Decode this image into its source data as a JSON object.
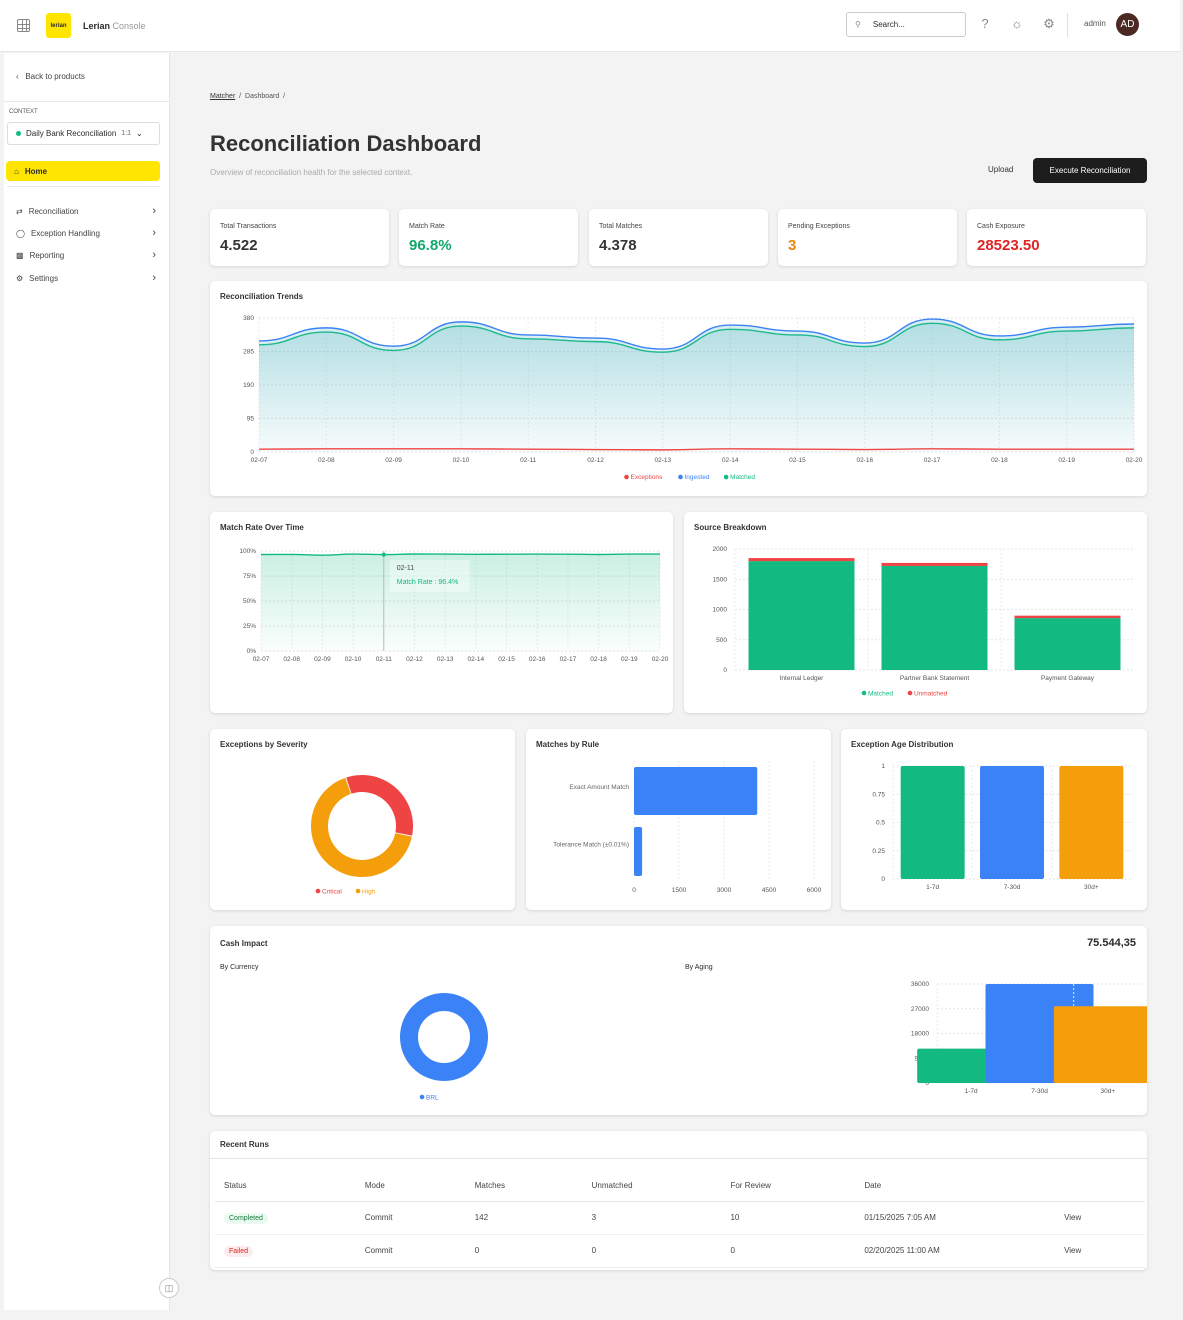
{
  "header": {
    "brand": "Lerian",
    "brand_sub": "Console",
    "logo_text": "lerian",
    "search_placeholder": "Search...",
    "user": "admin",
    "avatar": "AD"
  },
  "sidebar": {
    "back": "Back to products",
    "context_label": "CONTEXT",
    "context": "Daily Bank Reconciliation",
    "context_badge": "1:1",
    "home": "Home",
    "items": [
      {
        "label": "Reconciliation"
      },
      {
        "label": "Exception Handling"
      },
      {
        "label": "Reporting"
      },
      {
        "label": "Settings"
      }
    ]
  },
  "breadcrumb": [
    "Matcher",
    "Dashboard"
  ],
  "page": {
    "title": "Reconciliation Dashboard",
    "subtitle": "Overview of reconciliation health for the selected context.",
    "upload": "Upload",
    "execute": "Execute Reconciliation"
  },
  "kpis": [
    {
      "label": "Total Transactions",
      "value": "4.522",
      "color": "#333333"
    },
    {
      "label": "Match Rate",
      "value": "96.8%",
      "color": "#12a86b"
    },
    {
      "label": "Total Matches",
      "value": "4.378",
      "color": "#333333"
    },
    {
      "label": "Pending Exceptions",
      "value": "3",
      "color": "#e8860c"
    },
    {
      "label": "Cash Exposure",
      "value": "28523.50",
      "color": "#e02424"
    }
  ],
  "chart_data": [
    {
      "id": "trends",
      "type": "area",
      "title": "Reconciliation Trends",
      "x": [
        "02-07",
        "02-08",
        "02-09",
        "02-10",
        "02-11",
        "02-12",
        "02-13",
        "02-14",
        "02-15",
        "02-16",
        "02-17",
        "02-18",
        "02-19",
        "02-20"
      ],
      "yticks": [
        0,
        95,
        190,
        285,
        380
      ],
      "ylim": [
        0,
        380
      ],
      "series": [
        {
          "name": "Exceptions",
          "color": "#ef4444",
          "values": [
            8,
            9,
            9,
            9,
            8,
            7,
            6,
            9,
            8,
            7,
            9,
            8,
            8,
            8
          ]
        },
        {
          "name": "Ingested",
          "color": "#3b82f6",
          "values": [
            315,
            352,
            300,
            369,
            332,
            323,
            292,
            360,
            343,
            309,
            377,
            329,
            354,
            363
          ]
        },
        {
          "name": "Matched",
          "color": "#12b981",
          "values": [
            304,
            340,
            288,
            357,
            321,
            313,
            283,
            348,
            332,
            299,
            365,
            318,
            343,
            352
          ]
        }
      ]
    },
    {
      "id": "matchrate",
      "type": "area",
      "title": "Match Rate Over Time",
      "x": [
        "02-07",
        "02-08",
        "02-09",
        "02-10",
        "02-11",
        "02-12",
        "02-13",
        "02-14",
        "02-15",
        "02-16",
        "02-17",
        "02-18",
        "02-19",
        "02-20"
      ],
      "yticks": [
        "0%",
        "25%",
        "50%",
        "75%",
        "100%"
      ],
      "ylim": [
        0,
        100
      ],
      "series": [
        {
          "name": "Match Rate",
          "color": "#12b981",
          "values": [
            96.5,
            96.6,
            95.8,
            96.9,
            96.4,
            97.0,
            96.9,
            96.7,
            96.8,
            96.9,
            96.8,
            96.5,
            96.9,
            96.9
          ]
        }
      ],
      "tooltip": {
        "x": "02-11",
        "text": "Match Rate : 96.4%"
      }
    },
    {
      "id": "source",
      "type": "bar",
      "title": "Source Breakdown",
      "categories": [
        "Internal Ledger",
        "Partner Bank Statement",
        "Payment Gateway"
      ],
      "yticks": [
        0,
        500,
        1000,
        1500,
        2000
      ],
      "ylim": [
        0,
        2000
      ],
      "series": [
        {
          "name": "Matched",
          "color": "#12b981",
          "values": [
            1800,
            1720,
            858
          ]
        },
        {
          "name": "Unmatched",
          "color": "#ef4444",
          "values": [
            50,
            50,
            40
          ]
        }
      ]
    },
    {
      "id": "severity",
      "type": "pie",
      "title": "Exceptions by Severity",
      "slices": [
        {
          "name": "Critical",
          "value": 1,
          "color": "#ef4444"
        },
        {
          "name": "High",
          "value": 2,
          "color": "#f59e0b"
        }
      ]
    },
    {
      "id": "rule",
      "type": "bar",
      "title": "Matches by Rule",
      "categories": [
        "Exact Amount Match",
        "Tolerance Match (±0.01%)"
      ],
      "xticks": [
        0,
        1500,
        3000,
        4500,
        6000
      ],
      "xlim": [
        0,
        6000
      ],
      "values": [
        4108,
        270
      ],
      "color": "#3b82f6"
    },
    {
      "id": "age",
      "type": "bar",
      "title": "Exception Age Distribution",
      "categories": [
        "1-7d",
        "7-30d",
        "30d+"
      ],
      "yticks": [
        "0",
        "0.25",
        "0.5",
        "0.75",
        "1"
      ],
      "ylim": [
        0,
        1
      ],
      "values": [
        1,
        1,
        1
      ],
      "colors": [
        "#12b981",
        "#3b82f6",
        "#f59e0b"
      ]
    },
    {
      "id": "currency",
      "type": "pie",
      "title": "By Currency",
      "slices": [
        {
          "name": "BRL",
          "value": 100,
          "color": "#3b82f6"
        }
      ]
    },
    {
      "id": "aging",
      "type": "bar",
      "title": "By Aging",
      "categories": [
        "1-7d",
        "7-30d",
        "30d+"
      ],
      "yticks": [
        0,
        9000,
        18000,
        27000,
        36000
      ],
      "ylim": [
        0,
        36000
      ],
      "values": [
        12500,
        36000,
        27900
      ],
      "colors": [
        "#12b981",
        "#3b82f6",
        "#f59e0b"
      ]
    }
  ],
  "cash_impact": {
    "title": "Cash Impact",
    "total": "75.544,35"
  },
  "runs": {
    "title": "Recent Runs",
    "columns": [
      "Status",
      "Mode",
      "Matches",
      "Unmatched",
      "For Review",
      "Date"
    ],
    "rows": [
      {
        "status": "Completed",
        "mode": "Commit",
        "matches": "142",
        "unmatched": "3",
        "review": "10",
        "date": "01/15/2025 7:05 AM",
        "action": "View"
      },
      {
        "status": "Failed",
        "mode": "Commit",
        "matches": "0",
        "unmatched": "0",
        "review": "0",
        "date": "02/20/2025 11:00 AM",
        "action": "View"
      }
    ]
  }
}
